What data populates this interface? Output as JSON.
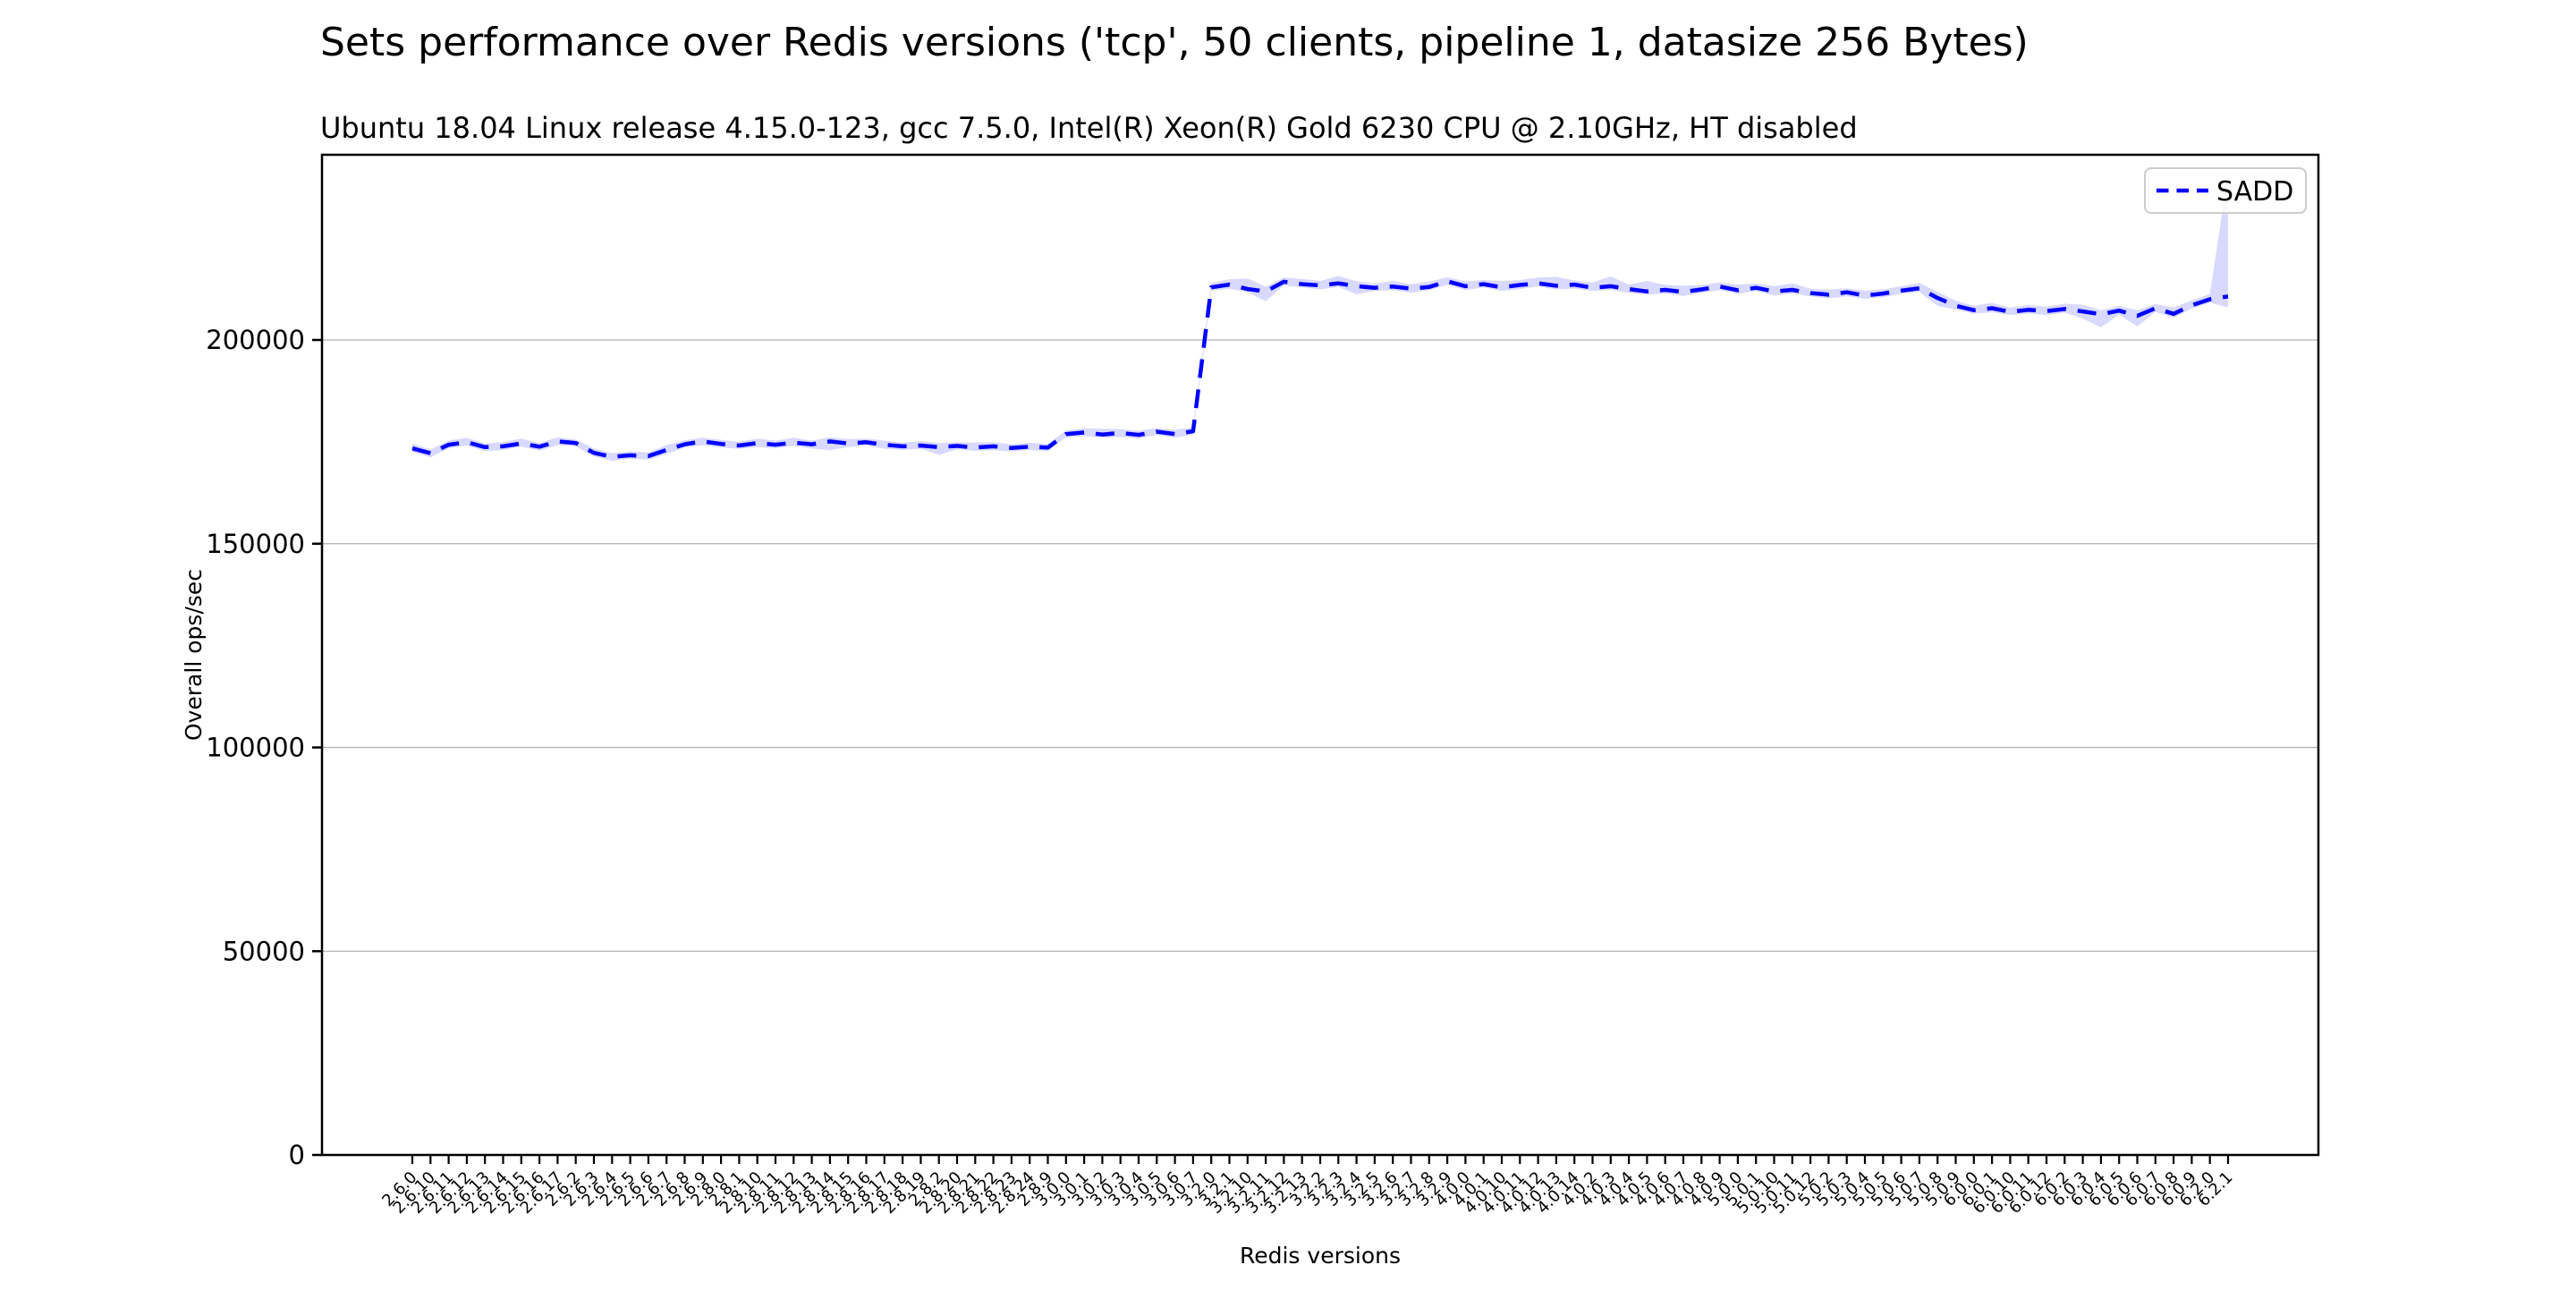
{
  "header": {
    "title": "Sets performance over Redis versions ('tcp', 50 clients, pipeline 1, datasize 256 Bytes)",
    "subtitle": "Ubuntu 18.04 Linux release 4.15.0-123, gcc 7.5.0, Intel(R) Xeon(R) Gold 6230 CPU @ 2.10GHz, HT disabled"
  },
  "legend": {
    "label": "SADD",
    "position": "upper right"
  },
  "axes": {
    "x_label": "Redis versions",
    "y_label": "Overall ops/sec",
    "y_ticks": [
      0,
      50000,
      100000,
      150000,
      200000
    ],
    "ylim": [
      0,
      245400
    ],
    "grid": true
  },
  "colors": {
    "line": "#0000ff",
    "band": "rgba(0,0,255,0.15)",
    "grid": "#b0b0b0",
    "axis": "#000000",
    "legend_border": "#cccccc"
  },
  "chart_data": {
    "type": "line",
    "title": "Sets performance over Redis versions ('tcp', 50 clients, pipeline 1, datasize 256 Bytes)",
    "subtitle": "Ubuntu 18.04 Linux release 4.15.0-123, gcc 7.5.0, Intel(R) Xeon(R) Gold 6230 CPU @ 2.10GHz, HT disabled",
    "xlabel": "Redis versions",
    "ylabel": "Overall ops/sec",
    "ylim": [
      0,
      245400
    ],
    "y_ticks": [
      0,
      50000,
      100000,
      150000,
      200000
    ],
    "legend_position": "upper right",
    "grid": true,
    "categories": [
      "2.6.0",
      "2.6.10",
      "2.6.11",
      "2.6.12",
      "2.6.13",
      "2.6.14",
      "2.6.15",
      "2.6.16",
      "2.6.17",
      "2.6.2",
      "2.6.3",
      "2.6.4",
      "2.6.5",
      "2.6.6",
      "2.6.7",
      "2.6.8",
      "2.6.9",
      "2.8.0",
      "2.8.1",
      "2.8.10",
      "2.8.11",
      "2.8.12",
      "2.8.13",
      "2.8.14",
      "2.8.15",
      "2.8.16",
      "2.8.17",
      "2.8.18",
      "2.8.19",
      "2.8.2",
      "2.8.20",
      "2.8.21",
      "2.8.22",
      "2.8.23",
      "2.8.24",
      "2.8.9",
      "3.0.0",
      "3.0.1",
      "3.0.2",
      "3.0.3",
      "3.0.4",
      "3.0.5",
      "3.0.6",
      "3.0.7",
      "3.2.0",
      "3.2.1",
      "3.2.10",
      "3.2.11",
      "3.2.12",
      "3.2.13",
      "3.2.2",
      "3.2.3",
      "3.2.4",
      "3.2.5",
      "3.2.6",
      "3.2.7",
      "3.2.8",
      "3.2.9",
      "4.0.0",
      "4.0.1",
      "4.0.10",
      "4.0.11",
      "4.0.12",
      "4.0.13",
      "4.0.14",
      "4.0.2",
      "4.0.3",
      "4.0.4",
      "4.0.5",
      "4.0.6",
      "4.0.7",
      "4.0.8",
      "4.0.9",
      "5.0.0",
      "5.0.1",
      "5.0.10",
      "5.0.11",
      "5.0.12",
      "5.0.2",
      "5.0.3",
      "5.0.4",
      "5.0.5",
      "5.0.6",
      "5.0.7",
      "5.0.8",
      "5.0.9",
      "6.0.0",
      "6.0.1",
      "6.0.10",
      "6.0.11",
      "6.0.12",
      "6.0.2",
      "6.0.3",
      "6.0.4",
      "6.0.5",
      "6.0.6",
      "6.0.7",
      "6.0.8",
      "6.0.9",
      "6.2.0",
      "6.2.1"
    ],
    "series": [
      {
        "name": "SADD",
        "color": "#0000ff",
        "linestyle": "dashed",
        "values": [
          173400,
          172200,
          174300,
          174900,
          173700,
          173900,
          174600,
          173800,
          175100,
          174700,
          172300,
          171300,
          171700,
          171500,
          173000,
          174400,
          175100,
          174500,
          174100,
          174700,
          174300,
          174800,
          174400,
          175100,
          174600,
          174900,
          174300,
          173900,
          174100,
          173700,
          174000,
          173600,
          173900,
          173500,
          173800,
          173600,
          176900,
          177300,
          176800,
          177200,
          176700,
          177500,
          176900,
          177600,
          212900,
          213600,
          212500,
          211900,
          214300,
          213700,
          213400,
          213900,
          213200,
          212800,
          213100,
          212600,
          213000,
          214400,
          213200,
          213700,
          212900,
          213500,
          213900,
          213300,
          213600,
          212800,
          213200,
          212500,
          211900,
          212300,
          211800,
          212400,
          213100,
          212200,
          212800,
          211900,
          212300,
          211500,
          211100,
          211700,
          210900,
          211400,
          212100,
          212700,
          210300,
          208400,
          207300,
          207800,
          206900,
          207400,
          207100,
          207600,
          207000,
          206300,
          207200,
          205900,
          207800,
          206400,
          208500,
          210000,
          210700
        ],
        "band_upper": [
          174600,
          173100,
          175300,
          176000,
          174600,
          174900,
          175800,
          174700,
          176100,
          175600,
          173400,
          172200,
          172700,
          172400,
          174200,
          175400,
          176000,
          175500,
          175000,
          175800,
          175300,
          176000,
          175300,
          176100,
          175700,
          175800,
          175300,
          174800,
          175200,
          174700,
          174900,
          174800,
          174900,
          174400,
          174800,
          174500,
          177800,
          178300,
          178200,
          178100,
          177700,
          178400,
          178000,
          178500,
          214000,
          214900,
          215100,
          213100,
          215300,
          215000,
          214500,
          215700,
          214400,
          213800,
          214500,
          213700,
          214300,
          215400,
          214400,
          214700,
          214500,
          214700,
          215300,
          215500,
          214600,
          214100,
          215600,
          213600,
          214500,
          213500,
          213300,
          213500,
          214100,
          213600,
          213900,
          213200,
          213900,
          212600,
          212400,
          212700,
          212100,
          212400,
          213200,
          214000,
          211800,
          209600,
          208400,
          209100,
          207900,
          208600,
          208200,
          208900,
          208600,
          207300,
          208400,
          207300,
          208800,
          208000,
          209700,
          211300,
          240800
        ],
        "band_lower": [
          172500,
          171200,
          173400,
          174100,
          172700,
          173000,
          173800,
          172800,
          174200,
          173900,
          171400,
          170300,
          170900,
          170600,
          172000,
          173600,
          174200,
          173600,
          173300,
          173700,
          173400,
          174000,
          173400,
          172900,
          173700,
          174100,
          173300,
          173000,
          173300,
          171800,
          173100,
          172800,
          172900,
          172600,
          173000,
          172700,
          176100,
          176400,
          176000,
          176200,
          175800,
          176700,
          176000,
          176800,
          212000,
          212600,
          211700,
          209500,
          213400,
          212900,
          212400,
          213000,
          211200,
          212000,
          212200,
          211600,
          212200,
          213500,
          212200,
          212900,
          212000,
          212500,
          213100,
          212400,
          212600,
          212000,
          212300,
          211500,
          211100,
          211400,
          210800,
          211600,
          212200,
          211300,
          212000,
          210900,
          211400,
          210700,
          210200,
          210700,
          210100,
          210500,
          211300,
          211800,
          208400,
          207400,
          206400,
          206800,
          206100,
          206500,
          206100,
          206700,
          205200,
          203100,
          206200,
          203300,
          206900,
          205400,
          207700,
          209100,
          208000
        ]
      }
    ]
  }
}
